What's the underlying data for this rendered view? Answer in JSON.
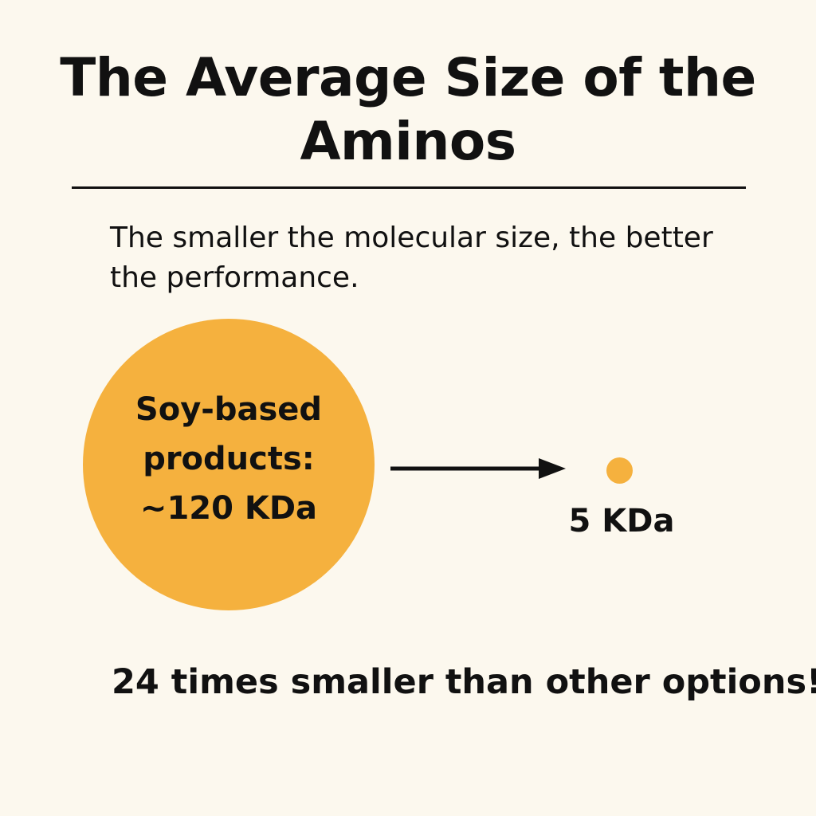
{
  "title": "The Average Size of the Aminos",
  "subtitle": "The smaller the molecular size, the better the performance.",
  "large_item": {
    "label_line1": "Soy-based",
    "label_line2": "products:",
    "size": "~120 KDa"
  },
  "small_item": {
    "size": "5 KDa"
  },
  "footer": "24 times smaller than other options!",
  "colors": {
    "background": "#fcf8ee",
    "circle": "#f5b13e",
    "text": "#111111"
  }
}
